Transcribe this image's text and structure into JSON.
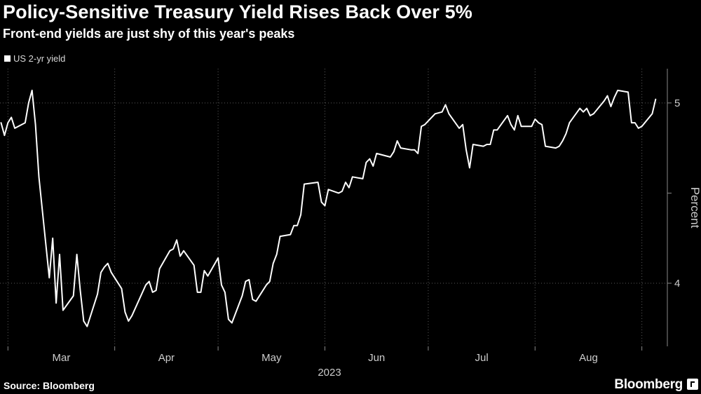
{
  "chart_data": {
    "type": "line",
    "title": "Policy-Sensitive Treasury Yield Rises Back Over 5%",
    "subtitle": "Front-end yields are just shy of this year's peaks",
    "ylabel": "Percent",
    "year_label": "2023",
    "month_labels": [
      "Mar",
      "Apr",
      "May",
      "Jun",
      "Jul",
      "Aug"
    ],
    "y_ticks": [
      4,
      5
    ],
    "ylim": [
      3.65,
      5.19
    ],
    "grid": true,
    "legend_position": "top-left",
    "series": [
      {
        "name": "US 2-yr yield",
        "color": "#ffffff",
        "points": [
          [
            "2023-02-27",
            4.89
          ],
          [
            "2023-02-28",
            4.82
          ],
          [
            "2023-03-01",
            4.89
          ],
          [
            "2023-03-02",
            4.92
          ],
          [
            "2023-03-03",
            4.86
          ],
          [
            "2023-03-06",
            4.89
          ],
          [
            "2023-03-07",
            5.0
          ],
          [
            "2023-03-08",
            5.07
          ],
          [
            "2023-03-09",
            4.88
          ],
          [
            "2023-03-10",
            4.59
          ],
          [
            "2023-03-13",
            4.03
          ],
          [
            "2023-03-14",
            4.25
          ],
          [
            "2023-03-15",
            3.89
          ],
          [
            "2023-03-16",
            4.16
          ],
          [
            "2023-03-17",
            3.85
          ],
          [
            "2023-03-20",
            3.93
          ],
          [
            "2023-03-21",
            4.16
          ],
          [
            "2023-03-22",
            3.96
          ],
          [
            "2023-03-23",
            3.79
          ],
          [
            "2023-03-24",
            3.76
          ],
          [
            "2023-03-27",
            3.94
          ],
          [
            "2023-03-28",
            4.06
          ],
          [
            "2023-03-29",
            4.09
          ],
          [
            "2023-03-30",
            4.11
          ],
          [
            "2023-03-31",
            4.06
          ],
          [
            "2023-04-03",
            3.97
          ],
          [
            "2023-04-04",
            3.84
          ],
          [
            "2023-04-05",
            3.79
          ],
          [
            "2023-04-06",
            3.82
          ],
          [
            "2023-04-10",
            3.99
          ],
          [
            "2023-04-11",
            4.01
          ],
          [
            "2023-04-12",
            3.95
          ],
          [
            "2023-04-13",
            3.96
          ],
          [
            "2023-04-14",
            4.08
          ],
          [
            "2023-04-17",
            4.18
          ],
          [
            "2023-04-18",
            4.19
          ],
          [
            "2023-04-19",
            4.24
          ],
          [
            "2023-04-20",
            4.15
          ],
          [
            "2023-04-21",
            4.18
          ],
          [
            "2023-04-24",
            4.1
          ],
          [
            "2023-04-25",
            3.95
          ],
          [
            "2023-04-26",
            3.95
          ],
          [
            "2023-04-27",
            4.07
          ],
          [
            "2023-04-28",
            4.04
          ],
          [
            "2023-05-01",
            4.14
          ],
          [
            "2023-05-02",
            3.99
          ],
          [
            "2023-05-03",
            3.95
          ],
          [
            "2023-05-04",
            3.8
          ],
          [
            "2023-05-05",
            3.78
          ],
          [
            "2023-05-08",
            3.93
          ],
          [
            "2023-05-09",
            4.01
          ],
          [
            "2023-05-10",
            4.02
          ],
          [
            "2023-05-11",
            3.91
          ],
          [
            "2023-05-12",
            3.9
          ],
          [
            "2023-05-15",
            3.99
          ],
          [
            "2023-05-16",
            4.01
          ],
          [
            "2023-05-17",
            4.11
          ],
          [
            "2023-05-18",
            4.16
          ],
          [
            "2023-05-19",
            4.26
          ],
          [
            "2023-05-22",
            4.27
          ],
          [
            "2023-05-23",
            4.32
          ],
          [
            "2023-05-24",
            4.32
          ],
          [
            "2023-05-25",
            4.38
          ],
          [
            "2023-05-26",
            4.55
          ],
          [
            "2023-05-30",
            4.56
          ],
          [
            "2023-05-31",
            4.45
          ],
          [
            "2023-06-01",
            4.43
          ],
          [
            "2023-06-02",
            4.52
          ],
          [
            "2023-06-05",
            4.5
          ],
          [
            "2023-06-06",
            4.51
          ],
          [
            "2023-06-07",
            4.56
          ],
          [
            "2023-06-08",
            4.53
          ],
          [
            "2023-06-09",
            4.59
          ],
          [
            "2023-06-12",
            4.58
          ],
          [
            "2023-06-13",
            4.67
          ],
          [
            "2023-06-14",
            4.69
          ],
          [
            "2023-06-15",
            4.65
          ],
          [
            "2023-06-16",
            4.72
          ],
          [
            "2023-06-20",
            4.7
          ],
          [
            "2023-06-21",
            4.73
          ],
          [
            "2023-06-22",
            4.79
          ],
          [
            "2023-06-23",
            4.75
          ],
          [
            "2023-06-26",
            4.74
          ],
          [
            "2023-06-27",
            4.74
          ],
          [
            "2023-06-28",
            4.72
          ],
          [
            "2023-06-29",
            4.87
          ],
          [
            "2023-06-30",
            4.88
          ],
          [
            "2023-07-03",
            4.94
          ],
          [
            "2023-07-05",
            4.95
          ],
          [
            "2023-07-06",
            4.99
          ],
          [
            "2023-07-07",
            4.94
          ],
          [
            "2023-07-10",
            4.86
          ],
          [
            "2023-07-11",
            4.88
          ],
          [
            "2023-07-12",
            4.74
          ],
          [
            "2023-07-13",
            4.64
          ],
          [
            "2023-07-14",
            4.77
          ],
          [
            "2023-07-17",
            4.76
          ],
          [
            "2023-07-18",
            4.77
          ],
          [
            "2023-07-19",
            4.77
          ],
          [
            "2023-07-20",
            4.85
          ],
          [
            "2023-07-21",
            4.85
          ],
          [
            "2023-07-24",
            4.93
          ],
          [
            "2023-07-25",
            4.88
          ],
          [
            "2023-07-26",
            4.85
          ],
          [
            "2023-07-27",
            4.93
          ],
          [
            "2023-07-28",
            4.87
          ],
          [
            "2023-07-31",
            4.87
          ],
          [
            "2023-08-01",
            4.91
          ],
          [
            "2023-08-02",
            4.89
          ],
          [
            "2023-08-03",
            4.88
          ],
          [
            "2023-08-04",
            4.76
          ],
          [
            "2023-08-07",
            4.75
          ],
          [
            "2023-08-08",
            4.76
          ],
          [
            "2023-08-09",
            4.79
          ],
          [
            "2023-08-10",
            4.83
          ],
          [
            "2023-08-11",
            4.89
          ],
          [
            "2023-08-14",
            4.97
          ],
          [
            "2023-08-15",
            4.95
          ],
          [
            "2023-08-16",
            4.97
          ],
          [
            "2023-08-17",
            4.93
          ],
          [
            "2023-08-18",
            4.94
          ],
          [
            "2023-08-21",
            5.01
          ],
          [
            "2023-08-22",
            5.04
          ],
          [
            "2023-08-23",
            4.98
          ],
          [
            "2023-08-24",
            5.03
          ],
          [
            "2023-08-25",
            5.07
          ],
          [
            "2023-08-28",
            5.06
          ],
          [
            "2023-08-29",
            4.89
          ],
          [
            "2023-08-30",
            4.89
          ],
          [
            "2023-08-31",
            4.86
          ],
          [
            "2023-09-01",
            4.87
          ],
          [
            "2023-09-04",
            4.94
          ],
          [
            "2023-09-05",
            5.02
          ]
        ]
      }
    ]
  },
  "footer": {
    "source": "Source: Bloomberg",
    "brand": "Bloomberg"
  }
}
